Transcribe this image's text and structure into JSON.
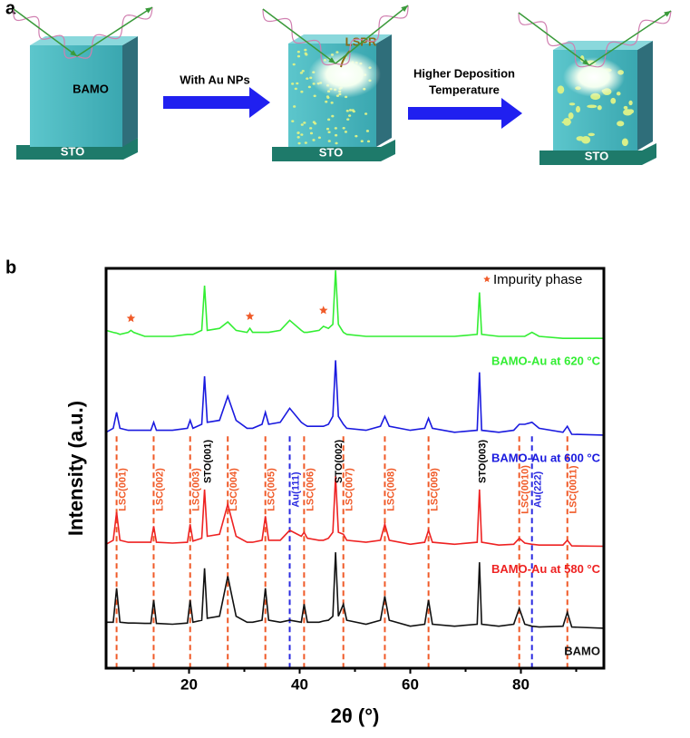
{
  "panel_a": {
    "label": "a",
    "film": "BAMO",
    "substrates": [
      "STO",
      "STO",
      "STO"
    ],
    "step1": "With Au NPs",
    "lspr": "LSPR",
    "step2": [
      "Higher Deposition",
      "Temperature"
    ]
  },
  "chart_data": {
    "type": "line",
    "panel_label": "b",
    "x_label": "2θ (°)",
    "y_label": "Intensity (a.u.)",
    "xlim": [
      5,
      95
    ],
    "ylim": [
      0,
      100
    ],
    "xticks": [
      20,
      40,
      60,
      80
    ],
    "xminorticks": [
      10,
      30,
      50,
      70,
      90
    ],
    "x": [
      5,
      6.3,
      6.9,
      7.5,
      9,
      9.5,
      10,
      12,
      13.1,
      13.6,
      14.1,
      17,
      19.7,
      20.2,
      20.7,
      22.3,
      22.8,
      23.3,
      25.5,
      27,
      28.5,
      30.5,
      31,
      31.5,
      33.2,
      33.8,
      34.4,
      36.5,
      38.2,
      40.3,
      40.8,
      41.4,
      43.5,
      44.3,
      45.2,
      46,
      46.5,
      47,
      47.9,
      48.5,
      52,
      54.6,
      55.4,
      56.2,
      60,
      62.6,
      63.3,
      64,
      68,
      72.1,
      72.5,
      72.9,
      76,
      78.7,
      79.7,
      80.7,
      82,
      83.3,
      87.6,
      88.4,
      89.2,
      95
    ],
    "series": [
      {
        "name": "BAMO-Au at 620 °C",
        "color": "#33ee33",
        "values": [
          84.5,
          84,
          83.8,
          83.5,
          84,
          84.5,
          84,
          83,
          83,
          83,
          83,
          83,
          83.5,
          83.5,
          83.5,
          84.5,
          95.7,
          84.5,
          85,
          86.6,
          84.5,
          84,
          85,
          84,
          84,
          84,
          84,
          84.5,
          87,
          84.5,
          84,
          84,
          84.5,
          85.5,
          85,
          86,
          99.5,
          86,
          84,
          83.5,
          83,
          83,
          83,
          83,
          83,
          83,
          83,
          83,
          83,
          83.5,
          94,
          83.5,
          83,
          83,
          83,
          83,
          84,
          83,
          82.5,
          82.5,
          82.5,
          82.5
        ]
      },
      {
        "name": "BAMO-Au at 600 °C",
        "color": "#1a1adf",
        "values": [
          59,
          60,
          64,
          60,
          59.5,
          59.5,
          59.5,
          59.5,
          59.5,
          61.5,
          59.5,
          59.5,
          60,
          62,
          60,
          61,
          73,
          61.5,
          62,
          68,
          62,
          60,
          60,
          60,
          61,
          64,
          61,
          61.5,
          65,
          61.5,
          61,
          60.5,
          60.5,
          60.5,
          61,
          63,
          77,
          63,
          61,
          60,
          59.5,
          60.5,
          63,
          60.5,
          59.5,
          60,
          62.5,
          60,
          59,
          59.5,
          74,
          59.5,
          59,
          59.5,
          61,
          61,
          61.5,
          60,
          59,
          60.5,
          58.5,
          58.3
        ]
      },
      {
        "name": "BAMO-Au at 580 °C",
        "color": "#ee2222",
        "values": [
          31,
          32,
          39,
          32,
          31.5,
          31.5,
          31.5,
          31.5,
          31.5,
          35.5,
          31.5,
          31.3,
          31.5,
          36,
          31.8,
          32.5,
          44.7,
          33,
          33.5,
          41,
          33,
          31.5,
          31.5,
          31.5,
          32,
          38,
          32,
          32,
          34.5,
          33,
          34,
          32.5,
          32,
          32,
          32.5,
          34,
          48,
          34,
          33.5,
          32,
          31.5,
          32,
          36,
          32,
          31,
          31.5,
          34.5,
          31.5,
          31,
          31.5,
          44.7,
          31.5,
          30.8,
          31,
          32.5,
          31.3,
          31,
          30.8,
          30.8,
          32,
          30.6,
          30.5
        ]
      },
      {
        "name": "BAMO",
        "color": "#111111",
        "values": [
          11.5,
          11.5,
          20,
          11.5,
          11.3,
          11.3,
          11.3,
          11.2,
          11.2,
          17,
          11.2,
          11,
          11.3,
          17,
          11.5,
          12,
          25,
          12.5,
          13,
          23,
          13,
          11.5,
          11.5,
          11.5,
          12,
          20,
          12,
          11.5,
          12,
          11.5,
          16,
          11.5,
          11.5,
          11.8,
          12,
          13,
          29,
          13,
          16,
          12,
          11,
          12,
          18,
          12,
          10.5,
          11,
          17,
          11,
          10.5,
          11,
          26.5,
          11,
          10.5,
          11,
          15,
          11,
          10.5,
          10.3,
          10.5,
          14,
          10.3,
          10
        ]
      }
    ],
    "reference_lines": [
      {
        "x": 6.9,
        "label": "LSC(001)",
        "color": "#f05a28"
      },
      {
        "x": 13.6,
        "label": "LSC(002)",
        "color": "#f05a28"
      },
      {
        "x": 20.2,
        "label": "LSC(003)",
        "color": "#f05a28"
      },
      {
        "x": 27,
        "label": "LSC(004)",
        "color": "#f05a28"
      },
      {
        "x": 33.8,
        "label": "LSC(005)",
        "color": "#f05a28"
      },
      {
        "x": 38.2,
        "label": "Au(111)",
        "color": "#2a2ae0"
      },
      {
        "x": 40.8,
        "label": "LSC(006)",
        "color": "#f05a28"
      },
      {
        "x": 47.9,
        "label": "LSC(007)",
        "color": "#f05a28"
      },
      {
        "x": 55.4,
        "label": "LSC(008)",
        "color": "#f05a28"
      },
      {
        "x": 63.3,
        "label": "LSC(009)",
        "color": "#f05a28"
      },
      {
        "x": 79.7,
        "label": "LSC(0010)",
        "color": "#f05a28"
      },
      {
        "x": 82,
        "label": "Au(222)",
        "color": "#2a2ae0"
      },
      {
        "x": 88.4,
        "label": "LSC(0011)",
        "color": "#f05a28"
      }
    ],
    "substrate_peaks": [
      {
        "x": 22.8,
        "label": "STO(001)"
      },
      {
        "x": 46.5,
        "label": "STO(002)"
      },
      {
        "x": 72.5,
        "label": "STO(003)"
      }
    ],
    "impurity": {
      "label": "Impurity phase",
      "color": "#f05a28",
      "x": [
        9.5,
        31,
        44.3
      ],
      "y": [
        87.5,
        88,
        89.5
      ]
    }
  }
}
